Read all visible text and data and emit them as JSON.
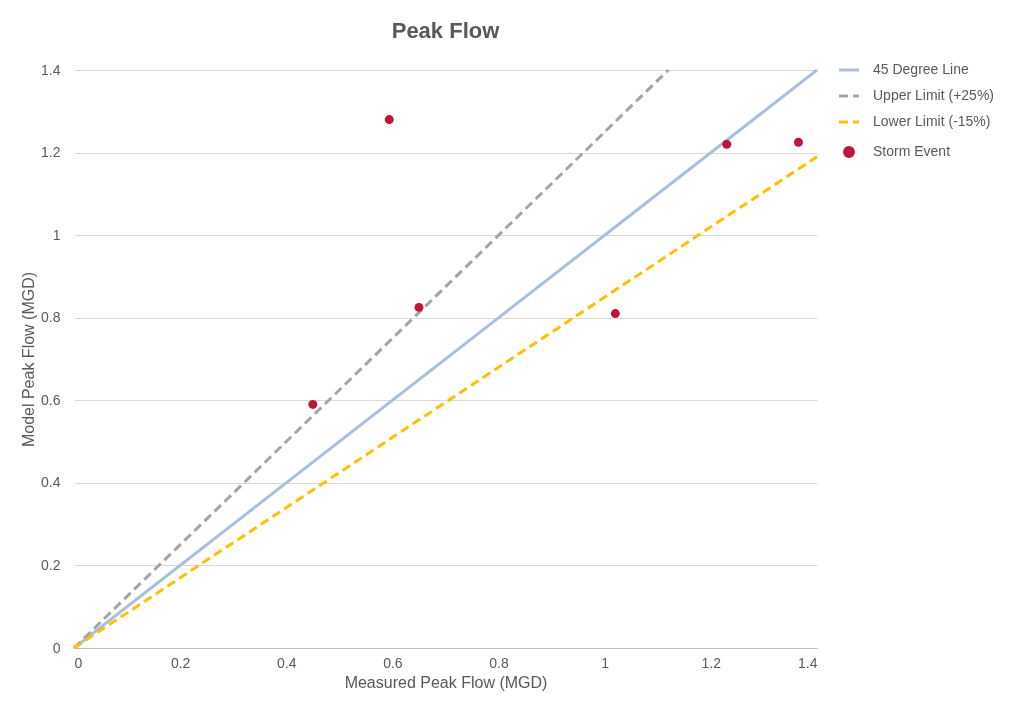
{
  "chart_data": {
    "type": "scatter",
    "title": "Peak Flow",
    "xlabel": "Measured Peak Flow (MGD)",
    "ylabel": "Model Peak Flow (MGD)",
    "xlim": [
      0,
      1.4
    ],
    "ylim": [
      0,
      1.4
    ],
    "xticks": [
      0,
      0.2,
      0.4,
      0.6,
      0.8,
      1,
      1.2,
      1.4
    ],
    "yticks": [
      0,
      0.2,
      0.4,
      0.6,
      0.8,
      1,
      1.2,
      1.4
    ],
    "grid": "y",
    "legend": "right",
    "series": [
      {
        "name": "45 Degree Line",
        "type": "line",
        "color": "#a9bfe0",
        "line_style": "solid",
        "marker": "none",
        "x": [
          0,
          1.4
        ],
        "values": [
          0,
          1.4
        ]
      },
      {
        "name": "Upper Limit (+25%)",
        "type": "line",
        "color": "#a5a5a5",
        "line_style": "dashed",
        "marker": "none",
        "x": [
          0,
          1.12
        ],
        "values": [
          0,
          1.4
        ]
      },
      {
        "name": "Lower Limit (-15%)",
        "type": "line",
        "color": "#ffc000",
        "line_style": "dashed",
        "marker": "none",
        "x": [
          0,
          1.4
        ],
        "values": [
          0,
          1.19
        ]
      },
      {
        "name": "Storm Event",
        "color": "#c0143c",
        "marker": "circle",
        "x": [
          0.45,
          0.594,
          0.65,
          1.02,
          1.23,
          1.365
        ],
        "values": [
          0.59,
          1.28,
          0.825,
          0.81,
          1.22,
          1.225
        ]
      }
    ]
  }
}
